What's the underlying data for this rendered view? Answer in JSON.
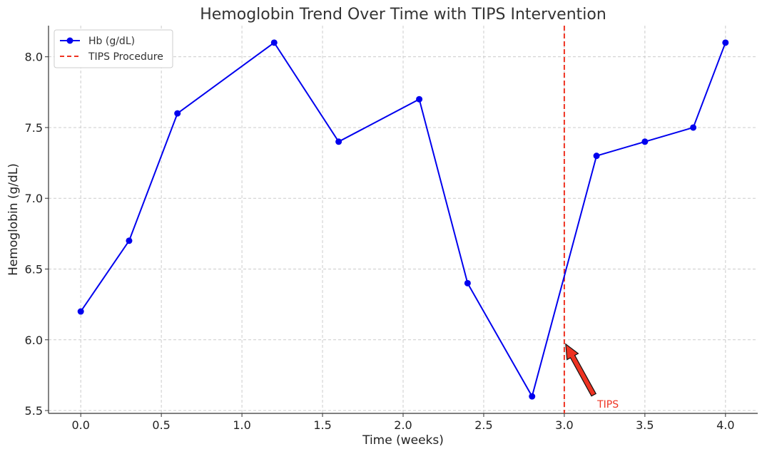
{
  "chart_data": {
    "type": "line",
    "title": "Hemoglobin Trend Over Time with TIPS Intervention",
    "xlabel": "Time (weeks)",
    "ylabel": "Hemoglobin (g/dL)",
    "xlim": [
      -0.2,
      4.2
    ],
    "ylim": [
      5.48,
      8.22
    ],
    "xticks": [
      0.0,
      0.5,
      1.0,
      1.5,
      2.0,
      2.5,
      3.0,
      3.5,
      4.0
    ],
    "xtick_labels": [
      "0.0",
      "0.5",
      "1.0",
      "1.5",
      "2.0",
      "2.5",
      "3.0",
      "3.5",
      "4.0"
    ],
    "yticks": [
      5.5,
      6.0,
      6.5,
      7.0,
      7.5,
      8.0
    ],
    "ytick_labels": [
      "5.5",
      "6.0",
      "6.5",
      "7.0",
      "7.5",
      "8.0"
    ],
    "grid": true,
    "legend_position": "top-left",
    "series": [
      {
        "name": "Hb (g/dL)",
        "color": "#0000ee",
        "marker": "circle",
        "x": [
          0.0,
          0.3,
          0.6,
          1.2,
          1.6,
          2.1,
          2.4,
          2.8,
          3.2,
          3.5,
          3.8,
          4.0
        ],
        "y": [
          6.2,
          6.7,
          7.6,
          8.1,
          7.4,
          7.7,
          6.4,
          5.6,
          7.3,
          7.4,
          7.5,
          8.1
        ]
      }
    ],
    "vertical_lines": [
      {
        "name": "TIPS Procedure",
        "x": 3.0,
        "color": "#ee3322",
        "style": "dashed"
      }
    ],
    "annotations": [
      {
        "text": "TIPS",
        "point": [
          3.0,
          6.0
        ],
        "text_position": [
          3.2,
          5.52
        ],
        "color": "#ee3322"
      }
    ]
  }
}
